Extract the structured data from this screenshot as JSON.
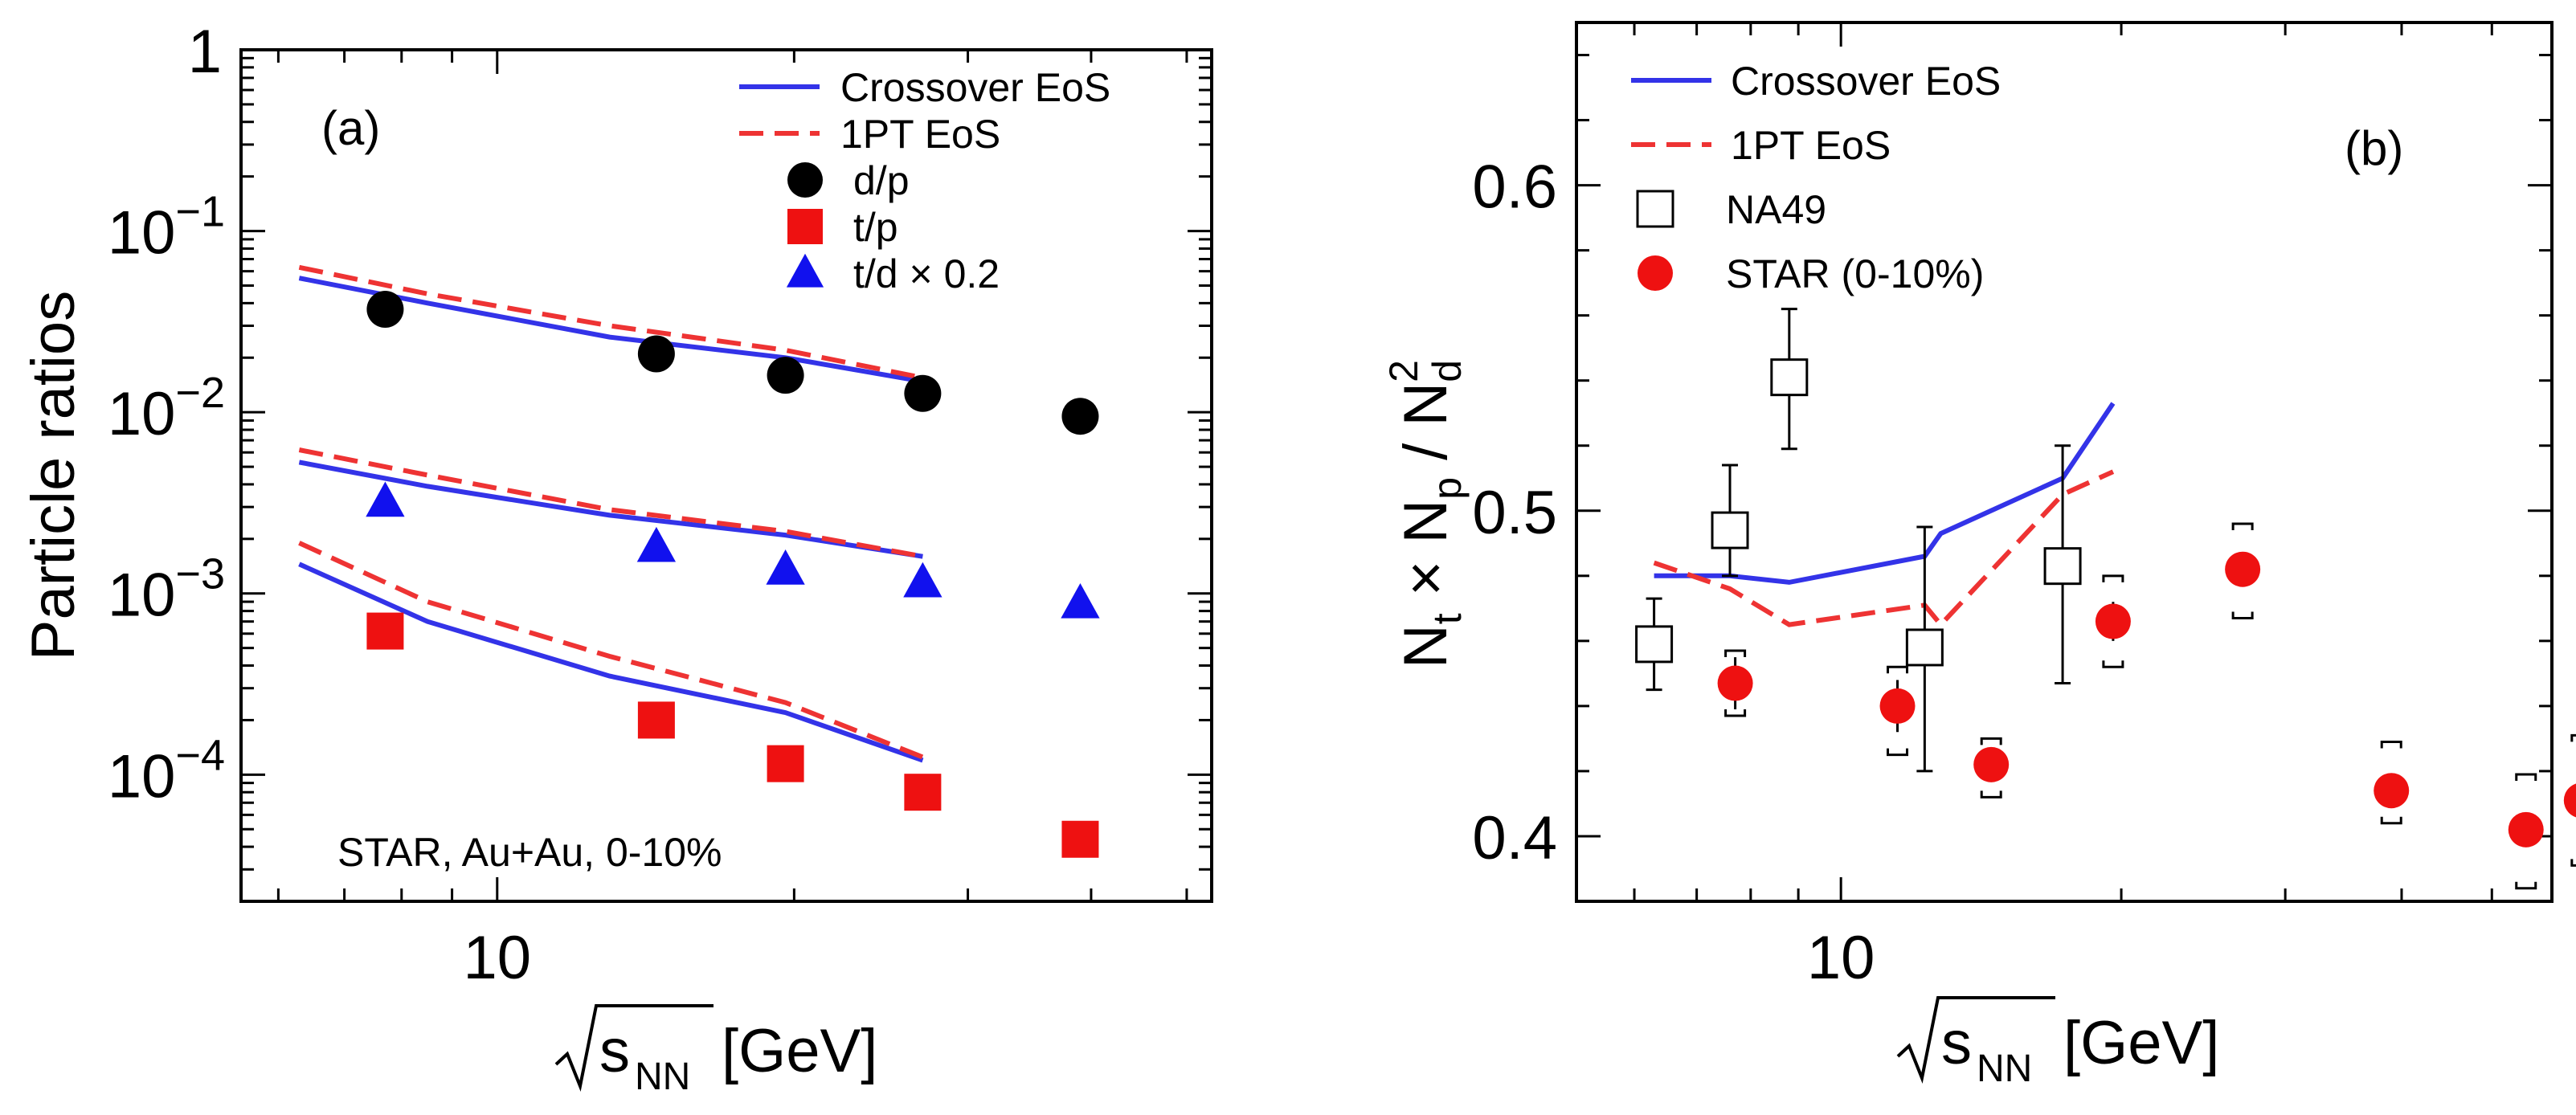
{
  "chart_data": [
    {
      "type": "line+scatter",
      "panel_label": "(a)",
      "ylabel": "Particle ratios",
      "xlabel": "[GeV]",
      "xlabel_sqrt": "s",
      "xlabel_sub": "NN",
      "yscale": "log",
      "xscale": "log",
      "xlim": [
        5.5,
        53
      ],
      "ylim": [
        2e-05,
        1
      ],
      "annotation": "STAR, Au+Au, 0-10%",
      "xticklabels": [
        {
          "value": 10,
          "label": "10"
        }
      ],
      "yticklabels": [
        {
          "value": 1,
          "label": "1"
        },
        {
          "value": 0.1,
          "base": "10",
          "exp": "−1"
        },
        {
          "value": 0.01,
          "base": "10",
          "exp": "−2"
        },
        {
          "value": 0.001,
          "base": "10",
          "exp": "−3"
        },
        {
          "value": 0.0001,
          "base": "10",
          "exp": "−4"
        }
      ],
      "legend": [
        {
          "label": "Crossover EoS",
          "style": "solid",
          "color": "#3333e8"
        },
        {
          "label": "1PT EoS",
          "style": "dashed",
          "color": "#ee3333"
        },
        {
          "label": "d/p",
          "marker": "circle",
          "color": "#000000"
        },
        {
          "label": "t/p",
          "marker": "square",
          "color": "#ee1111"
        },
        {
          "label": "t/d × 0.2",
          "marker": "triangle",
          "color": "#1111ee"
        }
      ],
      "lines": [
        {
          "name": "Crossover d/p",
          "style": "solid",
          "color": "#3333e8",
          "x": [
            6.3,
            8.5,
            13,
            19.6,
            27
          ],
          "y": [
            0.055,
            0.04,
            0.026,
            0.02,
            0.0148
          ]
        },
        {
          "name": "1PT d/p",
          "style": "dashed",
          "color": "#ee3333",
          "x": [
            6.3,
            8.5,
            13,
            19.6,
            27
          ],
          "y": [
            0.063,
            0.045,
            0.03,
            0.022,
            0.0155
          ]
        },
        {
          "name": "Crossover t/d×0.2",
          "style": "solid",
          "color": "#3333e8",
          "x": [
            6.3,
            8.5,
            13,
            19.6,
            27
          ],
          "y": [
            0.0053,
            0.0039,
            0.0027,
            0.0021,
            0.0016
          ]
        },
        {
          "name": "1PT t/d×0.2",
          "style": "dashed",
          "color": "#ee3333",
          "x": [
            6.3,
            8.5,
            13,
            19.6,
            27
          ],
          "y": [
            0.0062,
            0.0045,
            0.0029,
            0.0022,
            0.0016
          ]
        },
        {
          "name": "Crossover t/p",
          "style": "solid",
          "color": "#3333e8",
          "x": [
            6.3,
            8.5,
            13,
            19.6,
            27
          ],
          "y": [
            0.00145,
            0.0007,
            0.00035,
            0.00022,
            0.00012
          ]
        },
        {
          "name": "1PT t/p",
          "style": "dashed",
          "color": "#ee3333",
          "x": [
            6.3,
            8.5,
            13,
            19.6,
            27
          ],
          "y": [
            0.0019,
            0.0009,
            0.00045,
            0.00025,
            0.000125
          ]
        }
      ],
      "points": [
        {
          "name": "d/p",
          "marker": "circle",
          "color": "#000000",
          "x": [
            7.7,
            14.5,
            19.6,
            27,
            39
          ],
          "y": [
            0.037,
            0.021,
            0.016,
            0.0127,
            0.0095
          ]
        },
        {
          "name": "t/d × 0.2",
          "marker": "triangle",
          "color": "#1111ee",
          "x": [
            7.7,
            14.5,
            19.6,
            27,
            39
          ],
          "y": [
            0.0032,
            0.0018,
            0.00135,
            0.00115,
            0.00088
          ]
        },
        {
          "name": "t/p",
          "marker": "square",
          "color": "#ee1111",
          "x": [
            7.7,
            14.5,
            19.6,
            27,
            39
          ],
          "y": [
            0.00062,
            0.0002,
            0.000115,
            8e-05,
            4.4e-05
          ]
        }
      ]
    },
    {
      "type": "line+scatter",
      "panel_label": "(b)",
      "ylabel": "N_t × N_p / N_d^2",
      "xlabel": "[GeV]",
      "xlabel_sqrt": "s",
      "xlabel_sub": "NN",
      "xscale": "log",
      "xlim": [
        5.2,
        58
      ],
      "ylim": [
        0.38,
        0.65
      ],
      "xticklabels": [
        {
          "value": 10,
          "label": "10"
        }
      ],
      "yticklabels": [
        {
          "value": 0.4,
          "label": "0.4"
        },
        {
          "value": 0.5,
          "label": "0.5"
        },
        {
          "value": 0.6,
          "label": "0.6"
        }
      ],
      "legend": [
        {
          "label": "Crossover EoS",
          "style": "solid",
          "color": "#3333e8"
        },
        {
          "label": "1PT EoS",
          "style": "dashed",
          "color": "#ee3333"
        },
        {
          "label": "NA49",
          "marker": "open-square",
          "color": "#000000"
        },
        {
          "label": "STAR (0-10%)",
          "marker": "circle",
          "color": "#ee1111"
        }
      ],
      "ylabel_parts": {
        "a": "N",
        "a_sub": "t",
        "times": " × N",
        "b_sub": "p",
        "slash": " / N",
        "c_sub": "d",
        "c_sup": "2"
      },
      "lines": [
        {
          "name": "Crossover EoS",
          "style": "solid",
          "color": "#3333e8",
          "x": [
            6.3,
            7.6,
            8.8,
            12.3,
            12.8,
            17.3,
            19.6
          ],
          "y": [
            0.48,
            0.48,
            0.478,
            0.486,
            0.493,
            0.51,
            0.533
          ]
        },
        {
          "name": "1PT EoS",
          "style": "dashed",
          "color": "#ee3333",
          "x": [
            6.3,
            7.6,
            8.8,
            12.3,
            12.8,
            17.3,
            19.6
          ],
          "y": [
            0.484,
            0.476,
            0.465,
            0.471,
            0.465,
            0.505,
            0.512
          ]
        }
      ],
      "points": [
        {
          "name": "NA49",
          "marker": "open-square",
          "color": "#000000",
          "x": [
            6.3,
            7.6,
            8.8,
            12.3,
            17.3
          ],
          "y": [
            0.459,
            0.494,
            0.541,
            0.458,
            0.483
          ],
          "err_low": [
            0.014,
            0.014,
            0.022,
            0.038,
            0.036
          ],
          "err_high": [
            0.014,
            0.02,
            0.021,
            0.037,
            0.037
          ]
        },
        {
          "name": "STAR (0-10%)",
          "marker": "circle",
          "color": "#ee1111",
          "x": [
            7.7,
            11.5,
            14.5,
            19.6,
            27,
            39,
            54.4,
            62.4
          ],
          "y": [
            0.447,
            0.44,
            0.422,
            0.466,
            0.482,
            0.414,
            0.402,
            0.411
          ],
          "err_low": [
            0.008,
            0.008,
            0.005,
            0.006,
            0.005,
            0.004,
            0.004,
            0.004
          ],
          "err_high": [
            0.008,
            0.008,
            0.005,
            0.006,
            0.005,
            0.004,
            0.004,
            0.004
          ],
          "sys_low": [
            0.01,
            0.015,
            0.01,
            0.014,
            0.015,
            0.01,
            0.018,
            0.02
          ],
          "sys_high": [
            0.01,
            0.012,
            0.008,
            0.014,
            0.014,
            0.015,
            0.017,
            0.02
          ]
        }
      ]
    }
  ]
}
